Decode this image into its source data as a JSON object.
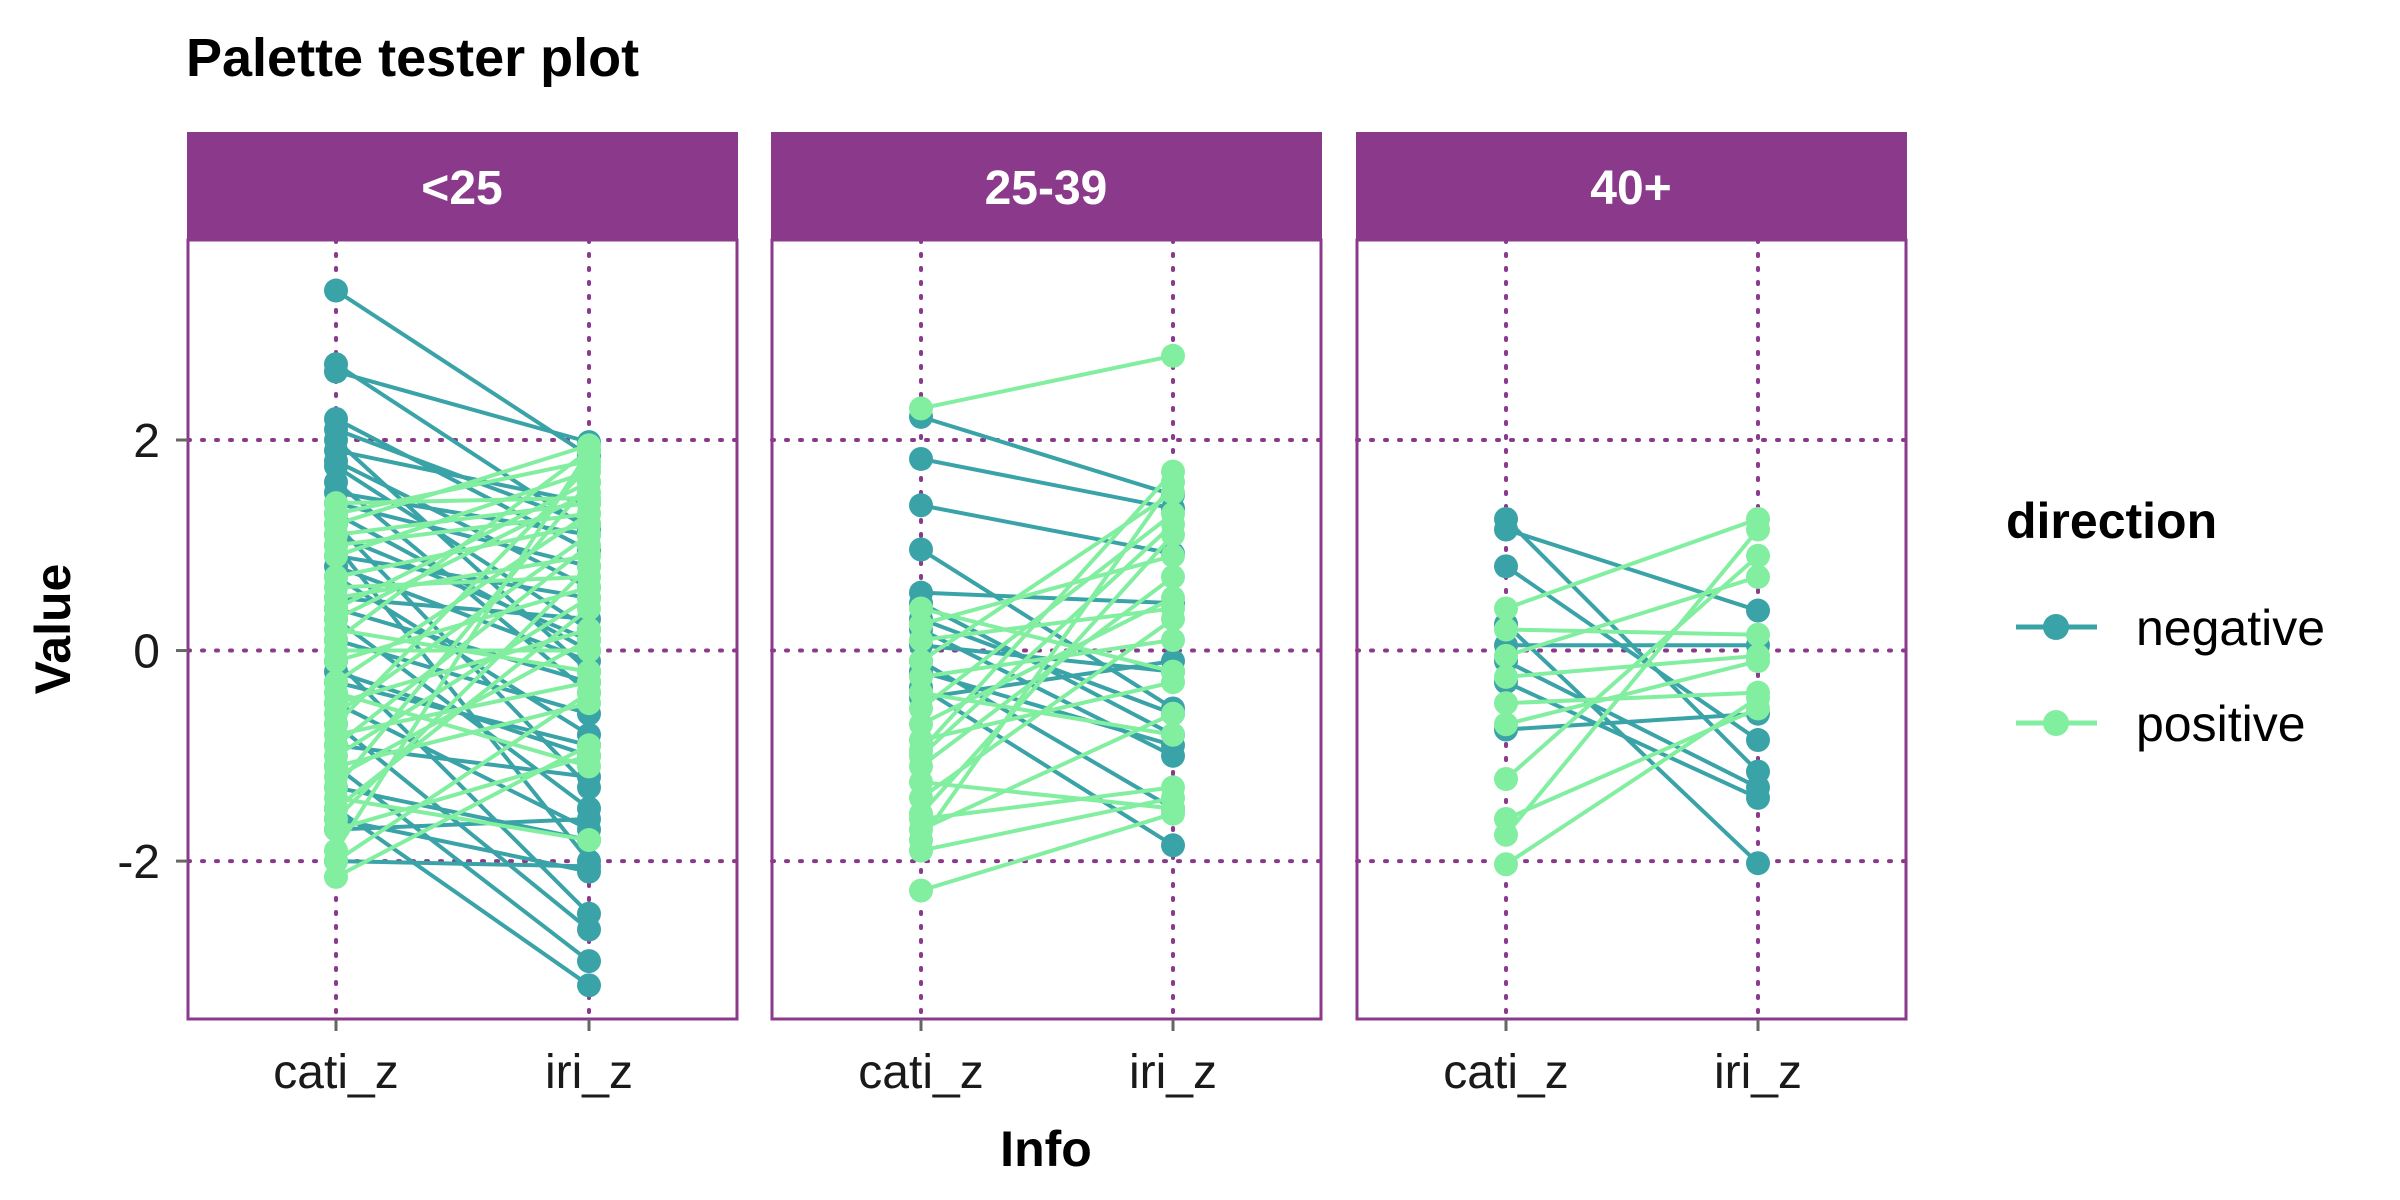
{
  "chart_data": {
    "type": "line",
    "title": "Palette tester plot",
    "xlabel": "Info",
    "ylabel": "Value",
    "x_categories": [
      "cati_z",
      "iri_z"
    ],
    "ylim": [
      -3.5,
      3.9
    ],
    "y_ticks": [
      -2,
      0,
      2
    ],
    "grid": "dotted major gridlines",
    "legend_placement": "right",
    "legend": {
      "title": "direction",
      "entries": [
        {
          "name": "negative",
          "color": "#3aa3a8"
        },
        {
          "name": "positive",
          "color": "#82eea0"
        }
      ]
    },
    "colors": {
      "accent": "#8b3a8b",
      "strip_background": "#8b3a8b",
      "strip_text": "#ffffff",
      "negative": "#3aa3a8",
      "positive": "#82eea0"
    },
    "facets": [
      {
        "label": "<25",
        "pairs": [
          {
            "cati_z": 3.42,
            "iri_z": 1.85,
            "direction": "negative"
          },
          {
            "cati_z": 2.72,
            "iri_z": 1.15,
            "direction": "negative"
          },
          {
            "cati_z": 2.65,
            "iri_z": 1.98,
            "direction": "negative"
          },
          {
            "cati_z": 2.2,
            "iri_z": 0.95,
            "direction": "negative"
          },
          {
            "cati_z": 2.1,
            "iri_z": 1.2,
            "direction": "negative"
          },
          {
            "cati_z": 2.0,
            "iri_z": -0.2,
            "direction": "negative"
          },
          {
            "cati_z": 1.9,
            "iri_z": 1.4,
            "direction": "negative"
          },
          {
            "cati_z": 1.8,
            "iri_z": 0.6,
            "direction": "negative"
          },
          {
            "cati_z": 1.75,
            "iri_z": 0.2,
            "direction": "negative"
          },
          {
            "cati_z": 1.6,
            "iri_z": -0.4,
            "direction": "negative"
          },
          {
            "cati_z": 1.5,
            "iri_z": 1.1,
            "direction": "negative"
          },
          {
            "cati_z": 1.2,
            "iri_z": -1.3,
            "direction": "negative"
          },
          {
            "cati_z": 1.1,
            "iri_z": 0.1,
            "direction": "negative"
          },
          {
            "cati_z": 1.0,
            "iri_z": -2.0,
            "direction": "negative"
          },
          {
            "cati_z": 0.9,
            "iri_z": 0.5,
            "direction": "negative"
          },
          {
            "cati_z": 0.7,
            "iri_z": -0.8,
            "direction": "negative"
          },
          {
            "cati_z": 0.5,
            "iri_z": 0.3,
            "direction": "negative"
          },
          {
            "cati_z": 0.3,
            "iri_z": -1.5,
            "direction": "negative"
          },
          {
            "cati_z": 0.1,
            "iri_z": -0.6,
            "direction": "negative"
          },
          {
            "cati_z": -0.1,
            "iri_z": -2.5,
            "direction": "negative"
          },
          {
            "cati_z": -0.3,
            "iri_z": -0.9,
            "direction": "negative"
          },
          {
            "cati_z": -0.5,
            "iri_z": -1.7,
            "direction": "negative"
          },
          {
            "cati_z": -0.7,
            "iri_z": -2.65,
            "direction": "negative"
          },
          {
            "cati_z": -0.9,
            "iri_z": -1.2,
            "direction": "negative"
          },
          {
            "cati_z": -1.1,
            "iri_z": -2.95,
            "direction": "negative"
          },
          {
            "cati_z": -1.3,
            "iri_z": -1.8,
            "direction": "negative"
          },
          {
            "cati_z": -1.5,
            "iri_z": -3.18,
            "direction": "negative"
          },
          {
            "cati_z": -1.7,
            "iri_z": -1.6,
            "direction": "negative"
          },
          {
            "cati_z": -2.0,
            "iri_z": -2.05,
            "direction": "negative"
          },
          {
            "cati_z": -1.6,
            "iri_z": -2.1,
            "direction": "negative"
          },
          {
            "cati_z": 1.3,
            "iri_z": 0.0,
            "direction": "negative"
          },
          {
            "cati_z": 0.4,
            "iri_z": -0.3,
            "direction": "negative"
          },
          {
            "cati_z": 1.4,
            "iri_z": 0.8,
            "direction": "negative"
          },
          {
            "cati_z": -0.2,
            "iri_z": -1.0,
            "direction": "negative"
          },
          {
            "cati_z": 0.8,
            "iri_z": -0.1,
            "direction": "negative"
          },
          {
            "cati_z": -2.15,
            "iri_z": -0.9,
            "direction": "positive"
          },
          {
            "cati_z": -1.9,
            "iri_z": 1.9,
            "direction": "positive"
          },
          {
            "cati_z": -1.7,
            "iri_z": -1.0,
            "direction": "positive"
          },
          {
            "cati_z": -1.5,
            "iri_z": 0.4,
            "direction": "positive"
          },
          {
            "cati_z": -1.3,
            "iri_z": 1.6,
            "direction": "positive"
          },
          {
            "cati_z": -1.1,
            "iri_z": -0.5,
            "direction": "positive"
          },
          {
            "cati_z": -0.9,
            "iri_z": 1.0,
            "direction": "positive"
          },
          {
            "cati_z": -0.7,
            "iri_z": 1.75,
            "direction": "positive"
          },
          {
            "cati_z": -0.5,
            "iri_z": 0.2,
            "direction": "positive"
          },
          {
            "cati_z": -0.3,
            "iri_z": 1.3,
            "direction": "positive"
          },
          {
            "cati_z": -0.1,
            "iri_z": 0.6,
            "direction": "positive"
          },
          {
            "cati_z": 0.1,
            "iri_z": 1.9,
            "direction": "positive"
          },
          {
            "cati_z": 0.3,
            "iri_z": 1.5,
            "direction": "positive"
          },
          {
            "cati_z": 0.5,
            "iri_z": 0.9,
            "direction": "positive"
          },
          {
            "cati_z": 0.7,
            "iri_z": 1.2,
            "direction": "positive"
          },
          {
            "cati_z": 0.9,
            "iri_z": 1.7,
            "direction": "positive"
          },
          {
            "cati_z": 1.1,
            "iri_z": 1.4,
            "direction": "positive"
          },
          {
            "cati_z": 1.3,
            "iri_z": 1.8,
            "direction": "positive"
          },
          {
            "cati_z": 1.4,
            "iri_z": 1.45,
            "direction": "positive"
          },
          {
            "cati_z": -1.4,
            "iri_z": -1.8,
            "direction": "positive"
          },
          {
            "cati_z": -0.8,
            "iri_z": -0.3,
            "direction": "positive"
          },
          {
            "cati_z": 0.0,
            "iri_z": 0.0,
            "direction": "positive"
          },
          {
            "cati_z": 0.6,
            "iri_z": 0.7,
            "direction": "positive"
          },
          {
            "cati_z": -1.2,
            "iri_z": 0.1,
            "direction": "positive"
          },
          {
            "cati_z": -0.6,
            "iri_z": 1.1,
            "direction": "positive"
          },
          {
            "cati_z": 0.2,
            "iri_z": -0.2,
            "direction": "positive"
          },
          {
            "cati_z": 1.0,
            "iri_z": 1.3,
            "direction": "positive"
          },
          {
            "cati_z": -1.6,
            "iri_z": 0.8,
            "direction": "positive"
          },
          {
            "cati_z": -0.4,
            "iri_z": -1.1,
            "direction": "positive"
          },
          {
            "cati_z": 0.4,
            "iri_z": 1.6,
            "direction": "positive"
          },
          {
            "cati_z": -2.0,
            "iri_z": -0.4,
            "direction": "positive"
          },
          {
            "cati_z": 1.2,
            "iri_z": 1.95,
            "direction": "positive"
          },
          {
            "cati_z": -1.0,
            "iri_z": 0.5,
            "direction": "positive"
          }
        ]
      },
      {
        "label": "25-39",
        "pairs": [
          {
            "cati_z": 2.22,
            "iri_z": 1.48,
            "direction": "negative"
          },
          {
            "cati_z": 1.82,
            "iri_z": 1.35,
            "direction": "negative"
          },
          {
            "cati_z": 1.38,
            "iri_z": 0.92,
            "direction": "negative"
          },
          {
            "cati_z": 0.96,
            "iri_z": -0.55,
            "direction": "negative"
          },
          {
            "cati_z": 0.55,
            "iri_z": 0.45,
            "direction": "negative"
          },
          {
            "cati_z": 0.45,
            "iri_z": -0.8,
            "direction": "negative"
          },
          {
            "cati_z": 0.2,
            "iri_z": -1.0,
            "direction": "negative"
          },
          {
            "cati_z": 0.05,
            "iri_z": -0.2,
            "direction": "negative"
          },
          {
            "cati_z": -0.1,
            "iri_z": -1.5,
            "direction": "negative"
          },
          {
            "cati_z": -0.2,
            "iri_z": -0.9,
            "direction": "negative"
          },
          {
            "cati_z": -0.35,
            "iri_z": -1.85,
            "direction": "negative"
          },
          {
            "cati_z": -0.45,
            "iri_z": -0.1,
            "direction": "negative"
          },
          {
            "cati_z": 0.3,
            "iri_z": -0.6,
            "direction": "negative"
          },
          {
            "cati_z": 2.3,
            "iri_z": 2.8,
            "direction": "positive"
          },
          {
            "cati_z": -2.28,
            "iri_z": -1.55,
            "direction": "positive"
          },
          {
            "cati_z": -1.9,
            "iri_z": -1.4,
            "direction": "positive"
          },
          {
            "cati_z": -1.8,
            "iri_z": 1.6,
            "direction": "positive"
          },
          {
            "cati_z": -1.7,
            "iri_z": -0.6,
            "direction": "positive"
          },
          {
            "cati_z": -1.55,
            "iri_z": 1.1,
            "direction": "positive"
          },
          {
            "cati_z": -1.4,
            "iri_z": 0.3,
            "direction": "positive"
          },
          {
            "cati_z": -1.25,
            "iri_z": -1.5,
            "direction": "positive"
          },
          {
            "cati_z": -1.1,
            "iri_z": 0.7,
            "direction": "positive"
          },
          {
            "cati_z": -0.95,
            "iri_z": 1.7,
            "direction": "positive"
          },
          {
            "cati_z": -0.85,
            "iri_z": -0.3,
            "direction": "positive"
          },
          {
            "cati_z": -0.7,
            "iri_z": 0.5,
            "direction": "positive"
          },
          {
            "cati_z": -0.55,
            "iri_z": 1.3,
            "direction": "positive"
          },
          {
            "cati_z": -0.4,
            "iri_z": -0.8,
            "direction": "positive"
          },
          {
            "cati_z": -0.25,
            "iri_z": 0.1,
            "direction": "positive"
          },
          {
            "cati_z": -0.1,
            "iri_z": 1.5,
            "direction": "positive"
          },
          {
            "cati_z": 0.1,
            "iri_z": 0.4,
            "direction": "positive"
          },
          {
            "cati_z": 0.25,
            "iri_z": 0.9,
            "direction": "positive"
          },
          {
            "cati_z": 0.4,
            "iri_z": -0.2,
            "direction": "positive"
          },
          {
            "cati_z": -1.6,
            "iri_z": -1.3,
            "direction": "positive"
          },
          {
            "cati_z": -1.0,
            "iri_z": 1.2,
            "direction": "positive"
          }
        ]
      },
      {
        "label": "40+",
        "pairs": [
          {
            "cati_z": 1.25,
            "iri_z": -1.15,
            "direction": "negative"
          },
          {
            "cati_z": 1.15,
            "iri_z": 0.38,
            "direction": "negative"
          },
          {
            "cati_z": 0.8,
            "iri_z": -0.85,
            "direction": "negative"
          },
          {
            "cati_z": 0.25,
            "iri_z": -2.02,
            "direction": "negative"
          },
          {
            "cati_z": 0.05,
            "iri_z": 0.05,
            "direction": "negative"
          },
          {
            "cati_z": -0.1,
            "iri_z": -1.3,
            "direction": "negative"
          },
          {
            "cati_z": -0.3,
            "iri_z": -1.4,
            "direction": "negative"
          },
          {
            "cati_z": -0.75,
            "iri_z": -0.6,
            "direction": "negative"
          },
          {
            "cati_z": 0.4,
            "iri_z": 1.25,
            "direction": "positive"
          },
          {
            "cati_z": 0.2,
            "iri_z": 0.15,
            "direction": "positive"
          },
          {
            "cati_z": -0.05,
            "iri_z": 0.7,
            "direction": "positive"
          },
          {
            "cati_z": -0.25,
            "iri_z": -0.05,
            "direction": "positive"
          },
          {
            "cati_z": -0.5,
            "iri_z": -0.4,
            "direction": "positive"
          },
          {
            "cati_z": -0.7,
            "iri_z": -0.1,
            "direction": "positive"
          },
          {
            "cati_z": -1.22,
            "iri_z": 0.9,
            "direction": "positive"
          },
          {
            "cati_z": -1.6,
            "iri_z": -0.55,
            "direction": "positive"
          },
          {
            "cati_z": -1.75,
            "iri_z": 1.15,
            "direction": "positive"
          },
          {
            "cati_z": -2.03,
            "iri_z": -0.45,
            "direction": "positive"
          }
        ]
      }
    ]
  }
}
